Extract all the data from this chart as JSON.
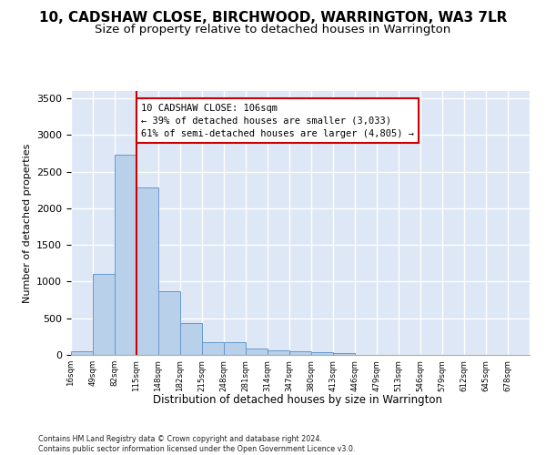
{
  "title": "10, CADSHAW CLOSE, BIRCHWOOD, WARRINGTON, WA3 7LR",
  "subtitle": "Size of property relative to detached houses in Warrington",
  "xlabel": "Distribution of detached houses by size in Warrington",
  "ylabel": "Number of detached properties",
  "bar_values": [
    50,
    1100,
    2730,
    2290,
    870,
    430,
    170,
    170,
    90,
    65,
    50,
    35,
    25,
    0,
    0,
    0,
    0,
    0,
    0,
    0,
    0
  ],
  "categories": [
    "16sqm",
    "49sqm",
    "82sqm",
    "115sqm",
    "148sqm",
    "182sqm",
    "215sqm",
    "248sqm",
    "281sqm",
    "314sqm",
    "347sqm",
    "380sqm",
    "413sqm",
    "446sqm",
    "479sqm",
    "513sqm",
    "546sqm",
    "579sqm",
    "612sqm",
    "645sqm",
    "678sqm"
  ],
  "bar_color": "#b8d0ea",
  "bar_edge_color": "#6699cc",
  "bg_color": "#dde7f5",
  "grid_color": "#ffffff",
  "vline_color": "#cc0000",
  "annotation_text": "10 CADSHAW CLOSE: 106sqm\n← 39% of detached houses are smaller (3,033)\n61% of semi-detached houses are larger (4,805) →",
  "annotation_box_facecolor": "#ffffff",
  "annotation_box_edgecolor": "#cc0000",
  "ylim": [
    0,
    3600
  ],
  "yticks": [
    0,
    500,
    1000,
    1500,
    2000,
    2500,
    3000,
    3500
  ],
  "footer_line1": "Contains HM Land Registry data © Crown copyright and database right 2024.",
  "footer_line2": "Contains public sector information licensed under the Open Government Licence v3.0.",
  "title_fontsize": 11,
  "subtitle_fontsize": 9.5,
  "annot_fontsize": 7.5
}
